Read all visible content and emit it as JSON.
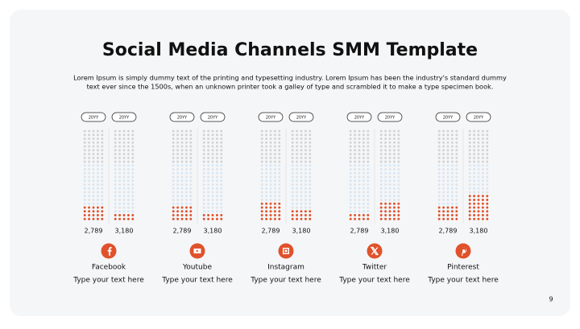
{
  "header": {
    "title": "Social Media Channels SMM Template",
    "description": [
      "Lorem Ipsum is simply dummy text of the printing and typesetting industry. Lorem Ipsum has been the industry's standard dummy",
      "text ever since the 1500s, when an unknown printer took a galley of type and scrambled it to make a type specimen book."
    ]
  },
  "channels": [
    {
      "name": "Facebook",
      "text": "Type your text here",
      "pills": [
        "20YY",
        "20YY"
      ],
      "values": [
        "2,789",
        "3,180"
      ],
      "filled_rows": [
        4,
        2
      ]
    },
    {
      "name": "Youtube",
      "text": "Type your text here",
      "pills": [
        "20YY",
        "20YY"
      ],
      "values": [
        "2,789",
        "3,180"
      ],
      "filled_rows": [
        4,
        2
      ]
    },
    {
      "name": "Instagram",
      "text": "Type your text here",
      "pills": [
        "20YY",
        "20YY"
      ],
      "values": [
        "2,789",
        "3,180"
      ],
      "filled_rows": [
        5,
        3
      ]
    },
    {
      "name": "Twitter",
      "text": "Type your text here",
      "pills": [
        "20YY",
        "20YY"
      ],
      "values": [
        "2,789",
        "3,180"
      ],
      "filled_rows": [
        2,
        5
      ]
    },
    {
      "name": "Pinterest",
      "text": "Type your text here",
      "pills": [
        "20YY",
        "20YY"
      ],
      "values": [
        "2,789",
        "3,180"
      ],
      "filled_rows": [
        4,
        7
      ]
    }
  ],
  "page_number": "9"
}
